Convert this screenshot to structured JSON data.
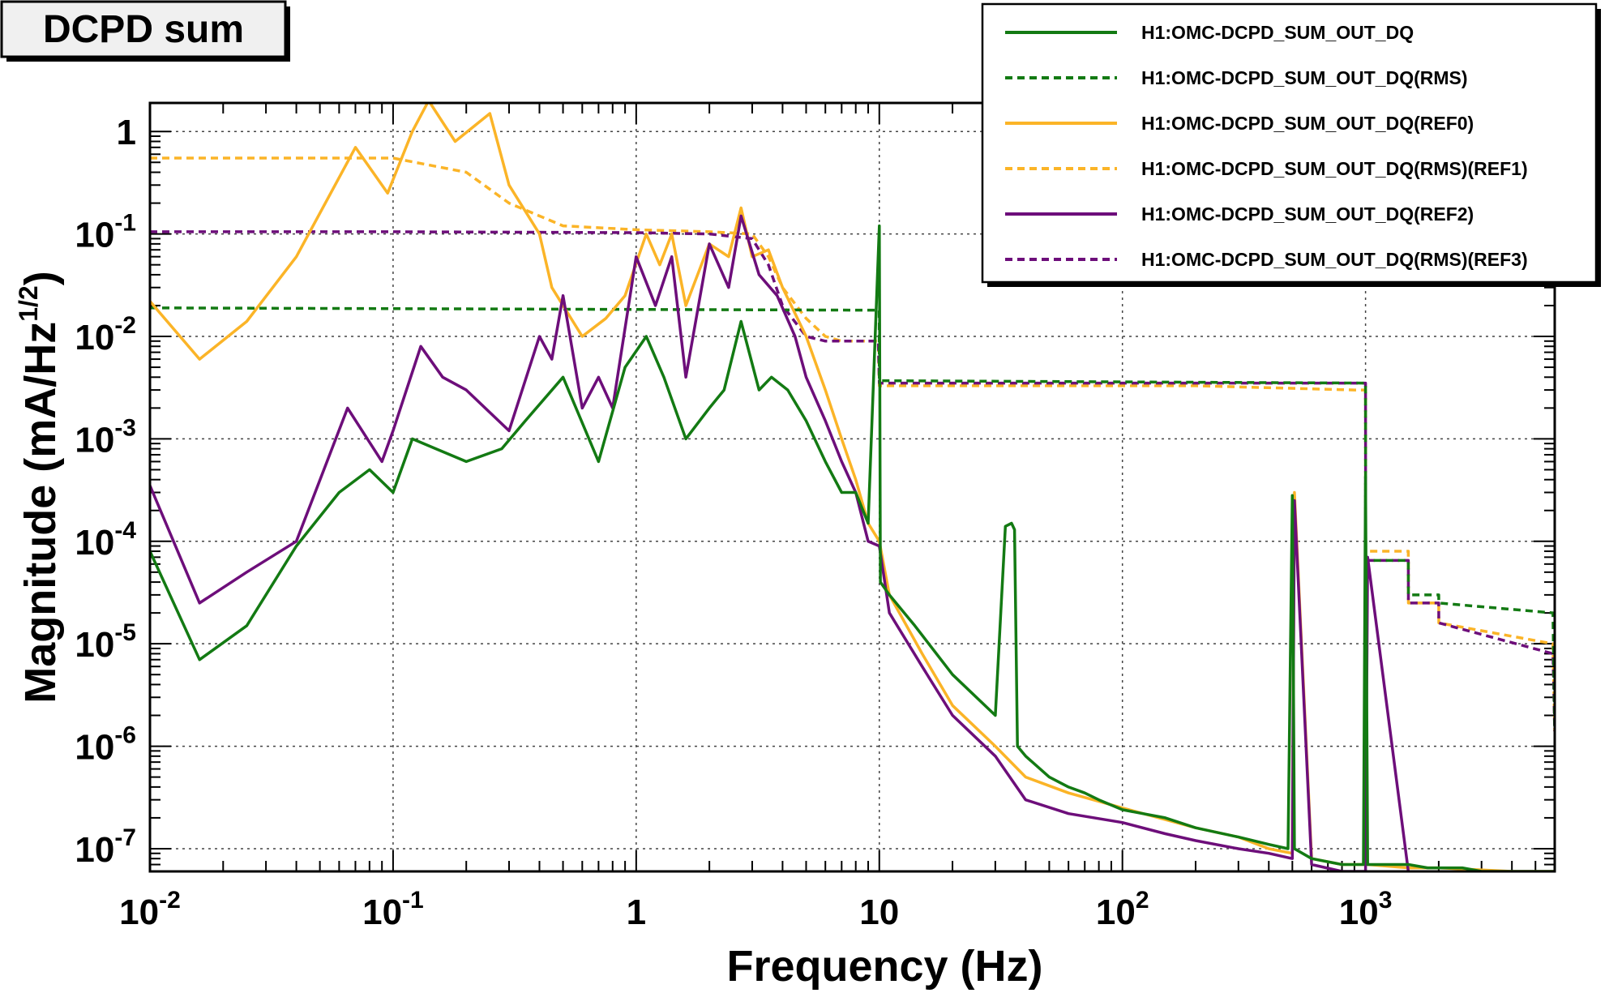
{
  "chart_data": {
    "type": "line",
    "title": "DCPD sum",
    "xlabel": "Frequency (Hz)",
    "ylabel": "Magnitude (mA/Hz",
    "ylabel_sup": "1/2",
    "ylabel_close": ")",
    "x_scale": "log",
    "y_scale": "log",
    "xlim": [
      0.01,
      6000
    ],
    "ylim": [
      6e-08,
      1.9
    ],
    "grid": true,
    "legend_position": "top-right",
    "x_ticks": [
      {
        "value": 0.01,
        "base": "10",
        "exp": "-2"
      },
      {
        "value": 0.1,
        "base": "10",
        "exp": "-1"
      },
      {
        "value": 1,
        "base": "1",
        "exp": ""
      },
      {
        "value": 10,
        "base": "10",
        "exp": ""
      },
      {
        "value": 100,
        "base": "10",
        "exp": "2"
      },
      {
        "value": 1000,
        "base": "10",
        "exp": "3"
      }
    ],
    "y_ticks": [
      {
        "value": 1,
        "base": "1",
        "exp": ""
      },
      {
        "value": 0.1,
        "base": "10",
        "exp": "-1"
      },
      {
        "value": 0.01,
        "base": "10",
        "exp": "-2"
      },
      {
        "value": 0.001,
        "base": "10",
        "exp": "-3"
      },
      {
        "value": 0.0001,
        "base": "10",
        "exp": "-4"
      },
      {
        "value": 1e-05,
        "base": "10",
        "exp": "-5"
      },
      {
        "value": 1e-06,
        "base": "10",
        "exp": "-6"
      },
      {
        "value": 1e-07,
        "base": "10",
        "exp": "-7"
      }
    ],
    "series": [
      {
        "name": "H1:OMC-DCPD_SUM_OUT_DQ",
        "color": "#137a13",
        "dash": "solid",
        "x": [
          0.01,
          0.016,
          0.025,
          0.04,
          0.06,
          0.08,
          0.1,
          0.12,
          0.15,
          0.2,
          0.28,
          0.35,
          0.5,
          0.7,
          0.9,
          1.1,
          1.3,
          1.6,
          2.0,
          2.3,
          2.7,
          3.2,
          3.6,
          4.2,
          5,
          6,
          7,
          8,
          9,
          10,
          10.1,
          11,
          14,
          20,
          30,
          33,
          35,
          36,
          37,
          40,
          50,
          60,
          70,
          80,
          100,
          150,
          200,
          300,
          400,
          480,
          500,
          510,
          600,
          800,
          980,
          1000,
          1020,
          1200,
          1500,
          1800,
          2000,
          2500,
          3000,
          4000,
          5000,
          6000
        ],
        "y": [
          8e-05,
          7e-06,
          1.5e-05,
          9e-05,
          0.0003,
          0.0005,
          0.0003,
          0.001,
          0.0008,
          0.0006,
          0.0008,
          0.0015,
          0.004,
          0.0006,
          0.005,
          0.01,
          0.004,
          0.001,
          0.002,
          0.003,
          0.014,
          0.003,
          0.004,
          0.003,
          0.0015,
          0.0006,
          0.0003,
          0.0003,
          0.00015,
          0.12,
          4e-05,
          3e-05,
          1.5e-05,
          5e-06,
          2e-06,
          0.00014,
          0.00015,
          0.00013,
          1e-06,
          8e-07,
          5e-07,
          4e-07,
          3.5e-07,
          3e-07,
          2.4e-07,
          2e-07,
          1.6e-07,
          1.3e-07,
          1.1e-07,
          1e-07,
          0.00028,
          1e-07,
          8e-08,
          7e-08,
          7e-08,
          0.00043,
          7e-08,
          7e-08,
          7e-08,
          6.5e-08,
          6.5e-08,
          6.5e-08,
          6e-08,
          6e-08,
          6e-08,
          6e-08
        ]
      },
      {
        "name": "H1:OMC-DCPD_SUM_OUT_DQ(RMS)",
        "color": "#137a13",
        "dash": "dashed",
        "x": [
          0.01,
          9.99,
          10,
          1000,
          1001,
          1500,
          1501,
          2000,
          2001,
          5900,
          6000
        ],
        "y": [
          0.019,
          0.018,
          0.0037,
          0.0035,
          6.5e-05,
          6.5e-05,
          3e-05,
          3e-05,
          2.5e-05,
          2e-05,
          1.5e-06
        ]
      },
      {
        "name": "H1:OMC-DCPD_SUM_OUT_DQ(REF0)",
        "color": "#fbb427",
        "dash": "solid",
        "x": [
          0.01,
          0.016,
          0.025,
          0.04,
          0.07,
          0.095,
          0.12,
          0.14,
          0.18,
          0.25,
          0.3,
          0.4,
          0.45,
          0.6,
          0.75,
          0.9,
          1.1,
          1.25,
          1.4,
          1.6,
          2.0,
          2.4,
          2.7,
          3.0,
          3.5,
          4.0,
          5,
          6,
          7,
          8,
          9,
          10,
          11,
          15,
          20,
          30,
          40,
          60,
          100,
          200,
          300,
          400,
          500,
          510,
          600,
          800,
          1000,
          1020,
          1500,
          2000,
          4000,
          6000
        ],
        "y": [
          0.022,
          0.006,
          0.014,
          0.06,
          0.7,
          0.25,
          1.0,
          2.0,
          0.8,
          1.5,
          0.3,
          0.1,
          0.03,
          0.01,
          0.015,
          0.025,
          0.1,
          0.05,
          0.1,
          0.02,
          0.08,
          0.06,
          0.18,
          0.06,
          0.07,
          0.03,
          0.01,
          0.003,
          0.001,
          0.0004,
          0.00015,
          0.0001,
          3e-05,
          8e-06,
          2.5e-06,
          1e-06,
          5e-07,
          3.5e-07,
          2.5e-07,
          1.6e-07,
          1.3e-07,
          1e-07,
          9e-08,
          0.0003,
          8e-08,
          7e-08,
          7e-08,
          7e-08,
          6.5e-08,
          6.5e-08,
          6e-08,
          6e-08
        ]
      },
      {
        "name": "H1:OMC-DCPD_SUM_OUT_DQ(RMS)(REF1)",
        "color": "#fbb427",
        "dash": "dashed",
        "x": [
          0.01,
          0.1,
          0.2,
          0.3,
          0.5,
          1,
          2,
          3,
          3.5,
          4,
          5,
          6,
          7,
          8,
          9.9,
          10,
          200,
          900,
          1000,
          1001,
          1500,
          1501,
          2000,
          2001,
          5900,
          6000
        ],
        "y": [
          0.55,
          0.55,
          0.4,
          0.2,
          0.12,
          0.11,
          0.105,
          0.1,
          0.06,
          0.03,
          0.015,
          0.01,
          0.009,
          0.009,
          0.009,
          0.0033,
          0.0033,
          0.003,
          0.003,
          8e-05,
          8e-05,
          2.5e-05,
          2.5e-05,
          1.6e-05,
          1e-05,
          1.4e-06
        ]
      },
      {
        "name": "H1:OMC-DCPD_SUM_OUT_DQ(REF2)",
        "color": "#6d0e7a",
        "dash": "solid",
        "x": [
          0.01,
          0.016,
          0.025,
          0.04,
          0.065,
          0.09,
          0.1,
          0.13,
          0.16,
          0.2,
          0.3,
          0.4,
          0.45,
          0.5,
          0.6,
          0.7,
          0.8,
          1.0,
          1.2,
          1.4,
          1.6,
          2.0,
          2.4,
          2.7,
          3.2,
          3.8,
          4.5,
          5,
          6,
          7,
          8,
          9,
          10,
          11,
          15,
          20,
          30,
          40,
          60,
          100,
          150,
          200,
          300,
          400,
          500,
          510,
          600,
          800,
          1000,
          1020,
          1500,
          2000,
          3000,
          6000
        ],
        "y": [
          0.00035,
          2.5e-05,
          5e-05,
          0.0001,
          0.002,
          0.0006,
          0.0012,
          0.008,
          0.004,
          0.003,
          0.0012,
          0.01,
          0.006,
          0.025,
          0.002,
          0.004,
          0.002,
          0.06,
          0.02,
          0.06,
          0.004,
          0.08,
          0.03,
          0.15,
          0.04,
          0.025,
          0.01,
          0.004,
          0.0015,
          0.0006,
          0.0003,
          0.0001,
          9e-05,
          2e-05,
          6e-06,
          2e-06,
          8e-07,
          3e-07,
          2.2e-07,
          1.8e-07,
          1.4e-07,
          1.2e-07,
          1e-07,
          9e-08,
          8e-08,
          0.00025,
          7e-08,
          6e-08,
          6e-08,
          7e-05,
          6e-08,
          5.5e-08,
          5.5e-08,
          5.5e-08
        ]
      },
      {
        "name": "H1:OMC-DCPD_SUM_OUT_DQ(RMS)(REF3)",
        "color": "#6d0e7a",
        "dash": "dashed",
        "x": [
          0.01,
          0.1,
          1,
          2,
          3,
          3.5,
          4,
          5,
          6,
          7,
          8,
          9.9,
          10,
          1000,
          1001,
          1500,
          1501,
          2000,
          2001,
          5900,
          6000
        ],
        "y": [
          0.105,
          0.105,
          0.103,
          0.1,
          0.09,
          0.05,
          0.02,
          0.01,
          0.009,
          0.009,
          0.009,
          0.009,
          0.0035,
          0.0035,
          6.5e-05,
          6.5e-05,
          2.5e-05,
          2.5e-05,
          1.6e-05,
          8e-06,
          1.4e-06
        ]
      }
    ]
  }
}
